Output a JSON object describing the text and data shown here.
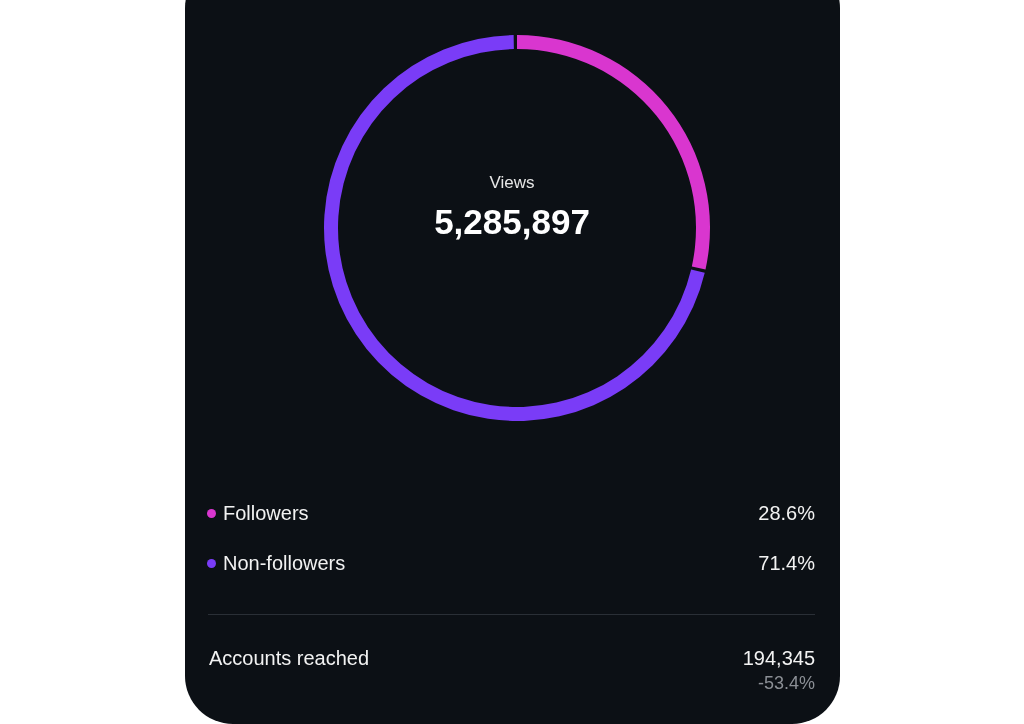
{
  "chart_data": {
    "type": "donut",
    "categories": [
      "Followers",
      "Non-followers"
    ],
    "values": [
      28.6,
      71.4
    ],
    "colors": [
      "#d936cf",
      "#7a3cf7"
    ],
    "value_labels": [
      "28.6%",
      "71.4%"
    ],
    "legend": "bottom",
    "annotations": [
      "Views",
      "5,285,897",
      "Accounts reached",
      "194,345",
      "-53.4%"
    ]
  }
}
